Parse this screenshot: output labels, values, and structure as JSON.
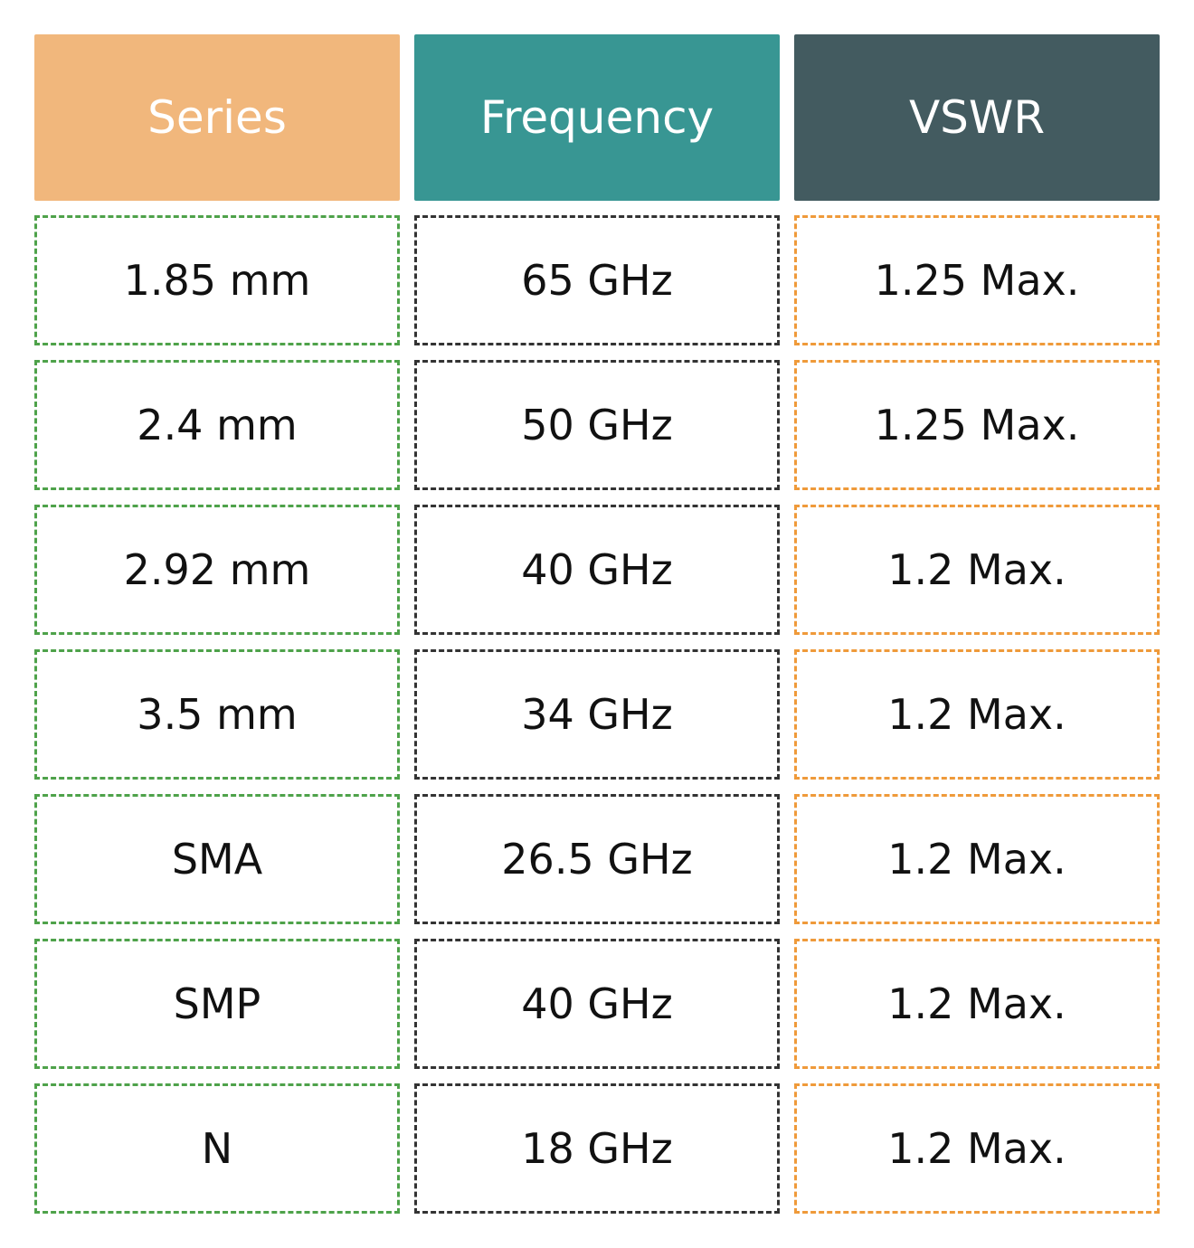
{
  "headers": {
    "series": "Series",
    "frequency": "Frequency",
    "vswr": "VSWR"
  },
  "colors": {
    "series_header": "#f1b77c",
    "frequency_header": "#389693",
    "vswr_header": "#435b60",
    "series_border": "#4ea24a",
    "frequency_border": "#333333",
    "vswr_border": "#ef9a3a"
  },
  "rows": [
    {
      "series": "1.85 mm",
      "frequency": "65 GHz",
      "vswr": "1.25 Max."
    },
    {
      "series": "2.4 mm",
      "frequency": "50 GHz",
      "vswr": "1.25 Max."
    },
    {
      "series": "2.92 mm",
      "frequency": "40 GHz",
      "vswr": "1.2 Max."
    },
    {
      "series": "3.5 mm",
      "frequency": "34 GHz",
      "vswr": "1.2 Max."
    },
    {
      "series": "SMA",
      "frequency": "26.5 GHz",
      "vswr": "1.2 Max."
    },
    {
      "series": "SMP",
      "frequency": "40 GHz",
      "vswr": "1.2 Max."
    },
    {
      "series": "N",
      "frequency": "18 GHz",
      "vswr": "1.2 Max."
    }
  ]
}
